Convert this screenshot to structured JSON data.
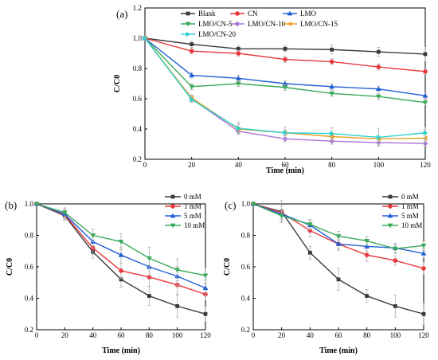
{
  "chart_data": [
    {
      "type": "line",
      "panel_label": "(a)",
      "xlabel": "Time (min)",
      "ylabel": "C/C0",
      "xlim": [
        0,
        120
      ],
      "ylim": [
        0.2,
        1.2
      ],
      "x_ticks": [
        0,
        20,
        40,
        60,
        80,
        100,
        120
      ],
      "y_ticks": [
        0.2,
        0.4,
        0.6,
        0.8,
        1.0,
        1.2
      ],
      "x_tick_labels": [
        "0",
        "20",
        "40",
        "60",
        "80",
        "100",
        "120"
      ],
      "y_tick_labels": [
        "0.2",
        "0.4",
        "0.6",
        "0.8",
        "1.0",
        "1.2"
      ],
      "legend_placement": "top-right",
      "x": [
        0,
        20,
        40,
        60,
        80,
        100,
        120
      ],
      "series": [
        {
          "name": "Blank",
          "color": "#3a3a3a",
          "marker": "square",
          "values": [
            1.0,
            0.96,
            0.93,
            0.93,
            0.925,
            0.91,
            0.895
          ],
          "errors": [
            0,
            0.02,
            0.02,
            0.02,
            0.03,
            0.03,
            0.05
          ]
        },
        {
          "name": "CN",
          "color": "#e8383d",
          "marker": "circle",
          "values": [
            1.0,
            0.915,
            0.9,
            0.86,
            0.845,
            0.81,
            0.78
          ],
          "errors": [
            0,
            0.02,
            0.02,
            0.02,
            0.02,
            0.02,
            0.02
          ]
        },
        {
          "name": "LMO",
          "color": "#1f5fd6",
          "marker": "triangle-up",
          "values": [
            1.0,
            0.755,
            0.735,
            0.7,
            0.68,
            0.665,
            0.62
          ],
          "errors": [
            0,
            0.02,
            0.02,
            0.02,
            0.02,
            0.02,
            0.02
          ]
        },
        {
          "name": "LMO/CN-5",
          "color": "#3aaa5a",
          "marker": "triangle-down",
          "values": [
            1.0,
            0.68,
            0.7,
            0.675,
            0.635,
            0.615,
            0.575
          ],
          "errors": [
            0,
            0.02,
            0.02,
            0.02,
            0.02,
            0.02,
            0.02
          ]
        },
        {
          "name": "LMO/CN-10",
          "color": "#a974d6",
          "marker": "diamond",
          "values": [
            1.0,
            0.6,
            0.385,
            0.335,
            0.32,
            0.31,
            0.305
          ],
          "errors": [
            0,
            0.02,
            0.02,
            0.02,
            0.02,
            0.02,
            0.02
          ]
        },
        {
          "name": "LMO/CN-15",
          "color": "#e8a12a",
          "marker": "triangle-left",
          "values": [
            1.0,
            0.605,
            0.4,
            0.375,
            0.35,
            0.335,
            0.34
          ],
          "errors": [
            0,
            0.02,
            0.03,
            0.02,
            0.03,
            0.02,
            0.03
          ]
        },
        {
          "name": "LMO/CN-20",
          "color": "#2ad0d0",
          "marker": "triangle-right",
          "values": [
            1.0,
            0.595,
            0.405,
            0.375,
            0.37,
            0.345,
            0.375
          ],
          "errors": [
            0,
            0.02,
            0.04,
            0.04,
            0.04,
            0.06,
            0.04
          ]
        }
      ]
    },
    {
      "type": "line",
      "panel_label": "(b)",
      "xlabel": "Time (min)",
      "ylabel": "C/C0",
      "xlim": [
        0,
        120
      ],
      "ylim": [
        0.2,
        1.0
      ],
      "x_ticks": [
        0,
        20,
        40,
        60,
        80,
        100,
        120
      ],
      "y_ticks": [
        0.2,
        0.4,
        0.6,
        0.8,
        1.0
      ],
      "x_tick_labels": [
        "0",
        "20",
        "40",
        "60",
        "80",
        "100",
        "120"
      ],
      "y_tick_labels": [
        "0.2",
        "0.4",
        "0.6",
        "0.8",
        "1.0"
      ],
      "legend_placement": "top-right",
      "x": [
        0,
        20,
        40,
        60,
        80,
        100,
        120
      ],
      "series": [
        {
          "name": "0 mM",
          "color": "#3a3a3a",
          "marker": "square",
          "values": [
            1.0,
            0.925,
            0.695,
            0.52,
            0.415,
            0.35,
            0.3
          ],
          "errors": [
            0,
            0.03,
            0.04,
            0.05,
            0.06,
            0.07,
            0.05
          ]
        },
        {
          "name": "1 mM",
          "color": "#e8383d",
          "marker": "circle",
          "values": [
            1.0,
            0.93,
            0.72,
            0.575,
            0.535,
            0.485,
            0.425
          ],
          "errors": [
            0,
            0.03,
            0.04,
            0.05,
            0.06,
            0.06,
            0.04
          ]
        },
        {
          "name": "5 mM",
          "color": "#1f5fd6",
          "marker": "triangle-up",
          "values": [
            1.0,
            0.935,
            0.76,
            0.675,
            0.6,
            0.54,
            0.465
          ],
          "errors": [
            0,
            0.03,
            0.04,
            0.05,
            0.06,
            0.06,
            0.05
          ]
        },
        {
          "name": "10 mM",
          "color": "#3aaa5a",
          "marker": "triangle-down",
          "values": [
            1.0,
            0.945,
            0.8,
            0.76,
            0.655,
            0.58,
            0.545
          ],
          "errors": [
            0,
            0.03,
            0.04,
            0.05,
            0.07,
            0.07,
            0.05
          ]
        }
      ]
    },
    {
      "type": "line",
      "panel_label": "(c)",
      "xlabel": "Time (min)",
      "ylabel": "C/C0",
      "xlim": [
        0,
        120
      ],
      "ylim": [
        0.2,
        1.0
      ],
      "x_ticks": [
        0,
        20,
        40,
        60,
        80,
        100,
        120
      ],
      "y_ticks": [
        0.2,
        0.4,
        0.6,
        0.8,
        1.0
      ],
      "x_tick_labels": [
        "0",
        "20",
        "40",
        "60",
        "80",
        "100",
        "120"
      ],
      "y_tick_labels": [
        "0.2",
        "0.4",
        "0.6",
        "0.8",
        "1.0"
      ],
      "legend_placement": "top-right",
      "x": [
        0,
        20,
        40,
        60,
        80,
        100,
        120
      ],
      "series": [
        {
          "name": "0 mM",
          "color": "#3a3a3a",
          "marker": "square",
          "values": [
            1.0,
            0.95,
            0.69,
            0.52,
            0.415,
            0.35,
            0.3
          ],
          "errors": [
            0,
            0.07,
            0.04,
            0.07,
            0.04,
            0.07,
            0.07
          ]
        },
        {
          "name": "1 mM",
          "color": "#e8383d",
          "marker": "circle",
          "values": [
            1.0,
            0.945,
            0.83,
            0.745,
            0.675,
            0.64,
            0.59
          ],
          "errors": [
            0,
            0.05,
            0.04,
            0.04,
            0.04,
            0.03,
            0.04
          ]
        },
        {
          "name": "5 mM",
          "color": "#1f5fd6",
          "marker": "triangle-up",
          "values": [
            1.0,
            0.935,
            0.865,
            0.745,
            0.73,
            0.72,
            0.685
          ],
          "errors": [
            0,
            0.03,
            0.03,
            0.03,
            0.03,
            0.03,
            0.03
          ]
        },
        {
          "name": "10 mM",
          "color": "#3aaa5a",
          "marker": "triangle-down",
          "values": [
            1.0,
            0.925,
            0.87,
            0.795,
            0.765,
            0.715,
            0.735
          ],
          "errors": [
            0,
            0.03,
            0.03,
            0.03,
            0.03,
            0.03,
            0.03
          ]
        }
      ]
    }
  ]
}
